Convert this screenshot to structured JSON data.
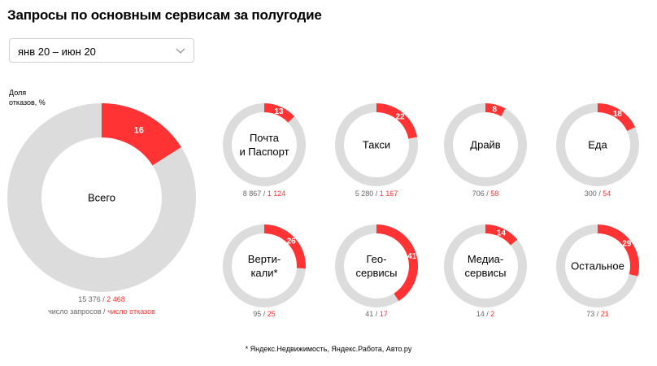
{
  "title": "Запросы по основным сервисам за полугодие",
  "period": {
    "selected": "янв 20 – июн 20",
    "icon": "chevron-down-icon"
  },
  "y_label": "Доля\nотказов, %",
  "legend": {
    "requests": "число запросов",
    "separator": " / ",
    "refusals": "число отказов"
  },
  "footnote": "* Яндекс.Недвижимость, Яндекс.Работа, Авто.ру",
  "colors": {
    "accent": "#ff3333",
    "track": "#dcdcdc",
    "count": "#666666"
  },
  "chart_data": {
    "type": "pie",
    "variant": "donut",
    "value_unit": "percent",
    "items": [
      {
        "name": "Всего",
        "lines": [
          "Всего"
        ],
        "share": 16,
        "requests": "15 376",
        "refusals": "2 468"
      },
      {
        "name": "Почта и Паспорт",
        "lines": [
          "Почта",
          "и Паспорт"
        ],
        "share": 13,
        "requests": "8 867",
        "refusals": "1 124"
      },
      {
        "name": "Такси",
        "lines": [
          "Такси"
        ],
        "share": 22,
        "requests": "5 280",
        "refusals": "1 167"
      },
      {
        "name": "Драйв",
        "lines": [
          "Драйв"
        ],
        "share": 8,
        "requests": "706",
        "refusals": "58"
      },
      {
        "name": "Еда",
        "lines": [
          "Еда"
        ],
        "share": 18,
        "requests": "300",
        "refusals": "54"
      },
      {
        "name": "Вертикали*",
        "lines": [
          "Верти-",
          "кали*"
        ],
        "share": 26,
        "requests": "95",
        "refusals": "25"
      },
      {
        "name": "Геосервисы",
        "lines": [
          "Гео-",
          "сервисы"
        ],
        "share": 41,
        "requests": "41",
        "refusals": "17"
      },
      {
        "name": "Медиасервисы",
        "lines": [
          "Медиа-",
          "сервисы"
        ],
        "share": 14,
        "requests": "14",
        "refusals": "2"
      },
      {
        "name": "Остальное",
        "lines": [
          "Остальное"
        ],
        "share": 29,
        "requests": "73",
        "refusals": "21"
      }
    ]
  }
}
